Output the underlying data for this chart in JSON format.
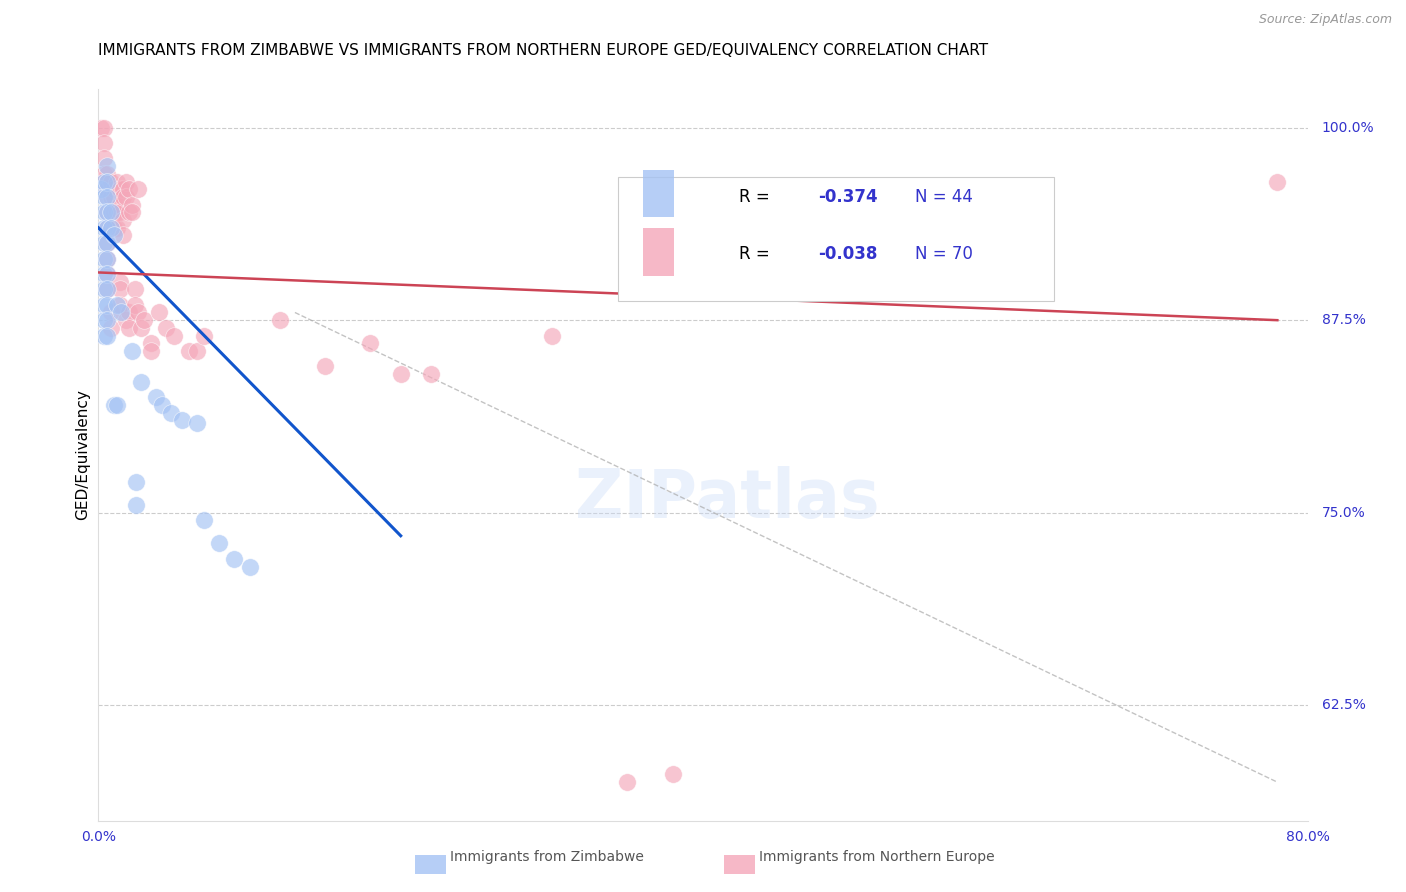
{
  "title": "IMMIGRANTS FROM ZIMBABWE VS IMMIGRANTS FROM NORTHERN EUROPE GED/EQUIVALENCY CORRELATION CHART",
  "source": "Source: ZipAtlas.com",
  "ylabel": "GED/Equivalency",
  "ylabel_right_ticks": [
    "100.0%",
    "87.5%",
    "75.0%",
    "62.5%"
  ],
  "ylabel_right_values": [
    1.0,
    0.875,
    0.75,
    0.625
  ],
  "zimbabwe_color": "#a4c2f4",
  "northern_europe_color": "#f4a7b9",
  "zimbabwe_trend_color": "#1155cc",
  "northern_europe_trend_color": "#cc4455",
  "dashed_color": "#aaaaaa",
  "watermark": "ZIPatlas",
  "watermark_zip_color": "#c9daf8",
  "watermark_atlas_color": "#c9daf8",
  "xlim": [
    0.0,
    0.8
  ],
  "ylim": [
    0.55,
    1.025
  ],
  "zimbabwe_scatter": [
    [
      0.002,
      0.96
    ],
    [
      0.004,
      0.965
    ],
    [
      0.004,
      0.955
    ],
    [
      0.004,
      0.945
    ],
    [
      0.004,
      0.935
    ],
    [
      0.004,
      0.925
    ],
    [
      0.004,
      0.915
    ],
    [
      0.004,
      0.905
    ],
    [
      0.004,
      0.895
    ],
    [
      0.004,
      0.885
    ],
    [
      0.004,
      0.875
    ],
    [
      0.004,
      0.865
    ],
    [
      0.006,
      0.975
    ],
    [
      0.006,
      0.965
    ],
    [
      0.006,
      0.955
    ],
    [
      0.006,
      0.945
    ],
    [
      0.006,
      0.935
    ],
    [
      0.006,
      0.925
    ],
    [
      0.006,
      0.915
    ],
    [
      0.006,
      0.905
    ],
    [
      0.006,
      0.895
    ],
    [
      0.006,
      0.885
    ],
    [
      0.006,
      0.875
    ],
    [
      0.006,
      0.865
    ],
    [
      0.008,
      0.945
    ],
    [
      0.008,
      0.935
    ],
    [
      0.01,
      0.93
    ],
    [
      0.012,
      0.885
    ],
    [
      0.015,
      0.88
    ],
    [
      0.022,
      0.855
    ],
    [
      0.028,
      0.835
    ],
    [
      0.038,
      0.825
    ],
    [
      0.042,
      0.82
    ],
    [
      0.048,
      0.815
    ],
    [
      0.055,
      0.81
    ],
    [
      0.065,
      0.808
    ],
    [
      0.01,
      0.82
    ],
    [
      0.012,
      0.82
    ],
    [
      0.025,
      0.77
    ],
    [
      0.025,
      0.755
    ],
    [
      0.07,
      0.745
    ],
    [
      0.08,
      0.73
    ],
    [
      0.09,
      0.72
    ],
    [
      0.1,
      0.715
    ]
  ],
  "northern_europe_scatter": [
    [
      0.002,
      1.0
    ],
    [
      0.004,
      1.0
    ],
    [
      0.004,
      0.99
    ],
    [
      0.004,
      0.98
    ],
    [
      0.004,
      0.97
    ],
    [
      0.006,
      0.97
    ],
    [
      0.006,
      0.965
    ],
    [
      0.006,
      0.96
    ],
    [
      0.006,
      0.955
    ],
    [
      0.006,
      0.945
    ],
    [
      0.006,
      0.935
    ],
    [
      0.006,
      0.925
    ],
    [
      0.006,
      0.915
    ],
    [
      0.006,
      0.905
    ],
    [
      0.006,
      0.895
    ],
    [
      0.008,
      0.965
    ],
    [
      0.008,
      0.955
    ],
    [
      0.008,
      0.945
    ],
    [
      0.008,
      0.935
    ],
    [
      0.008,
      0.88
    ],
    [
      0.008,
      0.87
    ],
    [
      0.01,
      0.96
    ],
    [
      0.01,
      0.955
    ],
    [
      0.01,
      0.945
    ],
    [
      0.01,
      0.935
    ],
    [
      0.012,
      0.965
    ],
    [
      0.012,
      0.945
    ],
    [
      0.012,
      0.935
    ],
    [
      0.014,
      0.96
    ],
    [
      0.014,
      0.95
    ],
    [
      0.014,
      0.945
    ],
    [
      0.014,
      0.9
    ],
    [
      0.014,
      0.895
    ],
    [
      0.014,
      0.885
    ],
    [
      0.016,
      0.96
    ],
    [
      0.016,
      0.955
    ],
    [
      0.016,
      0.94
    ],
    [
      0.016,
      0.93
    ],
    [
      0.018,
      0.965
    ],
    [
      0.018,
      0.955
    ],
    [
      0.018,
      0.875
    ],
    [
      0.02,
      0.96
    ],
    [
      0.02,
      0.945
    ],
    [
      0.02,
      0.88
    ],
    [
      0.02,
      0.87
    ],
    [
      0.022,
      0.95
    ],
    [
      0.022,
      0.945
    ],
    [
      0.024,
      0.895
    ],
    [
      0.024,
      0.885
    ],
    [
      0.026,
      0.96
    ],
    [
      0.026,
      0.88
    ],
    [
      0.028,
      0.87
    ],
    [
      0.03,
      0.875
    ],
    [
      0.035,
      0.86
    ],
    [
      0.035,
      0.855
    ],
    [
      0.04,
      0.88
    ],
    [
      0.045,
      0.87
    ],
    [
      0.05,
      0.865
    ],
    [
      0.06,
      0.855
    ],
    [
      0.065,
      0.855
    ],
    [
      0.07,
      0.865
    ],
    [
      0.12,
      0.875
    ],
    [
      0.15,
      0.845
    ],
    [
      0.18,
      0.86
    ],
    [
      0.2,
      0.84
    ],
    [
      0.22,
      0.84
    ],
    [
      0.3,
      0.865
    ],
    [
      0.35,
      0.575
    ],
    [
      0.38,
      0.58
    ],
    [
      0.78,
      0.965
    ]
  ],
  "zimbabwe_trend_x": [
    0.0,
    0.2
  ],
  "zimbabwe_trend_y": [
    0.935,
    0.735
  ],
  "northern_europe_trend_x": [
    0.0,
    0.78
  ],
  "northern_europe_trend_y": [
    0.906,
    0.875
  ],
  "dashed_trend_x": [
    0.13,
    0.78
  ],
  "dashed_trend_y": [
    0.88,
    0.575
  ],
  "legend_R1": "-0.374",
  "legend_N1": "44",
  "legend_R2": "-0.038",
  "legend_N2": "70",
  "legend_color": "#3333cc",
  "bottom_label1": "Immigrants from Zimbabwe",
  "bottom_label2": "Immigrants from Northern Europe"
}
